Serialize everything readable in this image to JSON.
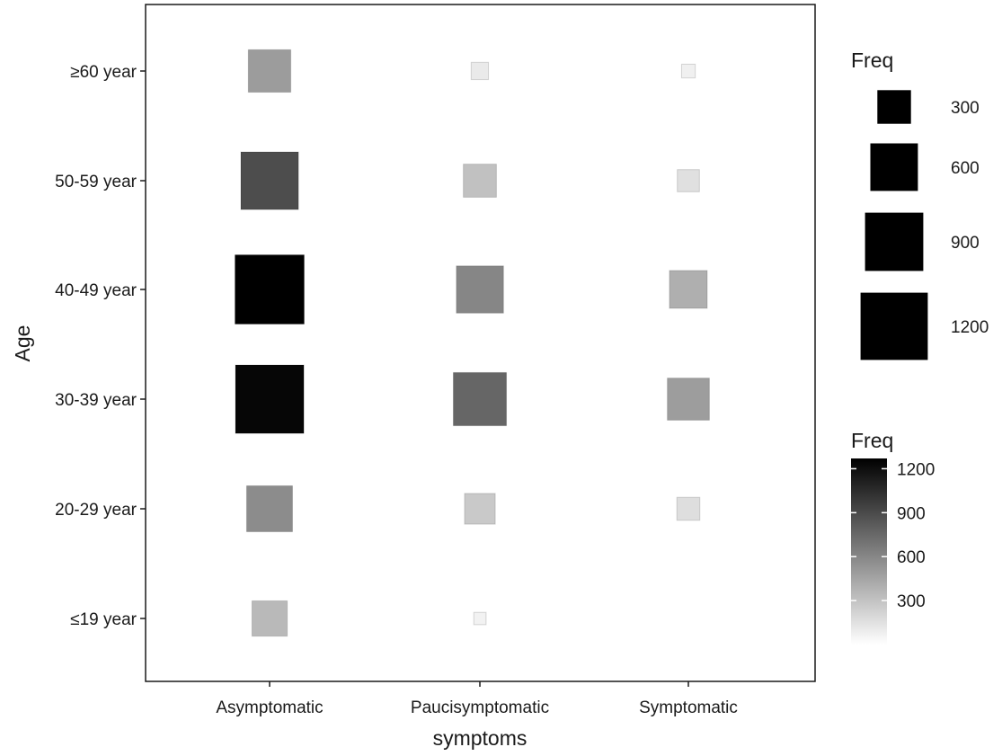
{
  "chart_data": {
    "type": "heatmap",
    "xlabel": "symptoms",
    "ylabel": "Age",
    "categories_x": [
      "Asymptomatic",
      "Paucisymptomatic",
      "Symptomatic"
    ],
    "categories_y": [
      "≤19 year",
      "20-29 year",
      "30-39 year",
      "40-49 year",
      "50-59 year",
      "≥60 year"
    ],
    "value_name": "Freq",
    "series": [
      {
        "x": "Asymptomatic",
        "y": "≥60 year",
        "value": 480
      },
      {
        "x": "Asymptomatic",
        "y": "50-59 year",
        "value": 880
      },
      {
        "x": "Asymptomatic",
        "y": "40-49 year",
        "value": 1270
      },
      {
        "x": "Asymptomatic",
        "y": "30-39 year",
        "value": 1240
      },
      {
        "x": "Asymptomatic",
        "y": "20-29 year",
        "value": 560
      },
      {
        "x": "Asymptomatic",
        "y": "≤19 year",
        "value": 330
      },
      {
        "x": "Paucisymptomatic",
        "y": "≥60 year",
        "value": 80
      },
      {
        "x": "Paucisymptomatic",
        "y": "50-59 year",
        "value": 290
      },
      {
        "x": "Paucisymptomatic",
        "y": "40-49 year",
        "value": 590
      },
      {
        "x": "Paucisymptomatic",
        "y": "30-39 year",
        "value": 750
      },
      {
        "x": "Paucisymptomatic",
        "y": "20-29 year",
        "value": 250
      },
      {
        "x": "Paucisymptomatic",
        "y": "≤19 year",
        "value": 40
      },
      {
        "x": "Symptomatic",
        "y": "≥60 year",
        "value": 50
      },
      {
        "x": "Symptomatic",
        "y": "50-59 year",
        "value": 130
      },
      {
        "x": "Symptomatic",
        "y": "40-49 year",
        "value": 380
      },
      {
        "x": "Symptomatic",
        "y": "30-39 year",
        "value": 470
      },
      {
        "x": "Symptomatic",
        "y": "20-29 year",
        "value": 140
      }
    ],
    "size_legend": {
      "title": "Freq",
      "breaks": [
        300,
        600,
        900,
        1200
      ]
    },
    "color_legend": {
      "title": "Freq",
      "breaks": [
        300,
        600,
        900,
        1200
      ],
      "low_color": "#ffffff",
      "high_color": "#000000",
      "min": 0,
      "max": 1270
    },
    "grid": false,
    "legend_position": "right"
  }
}
